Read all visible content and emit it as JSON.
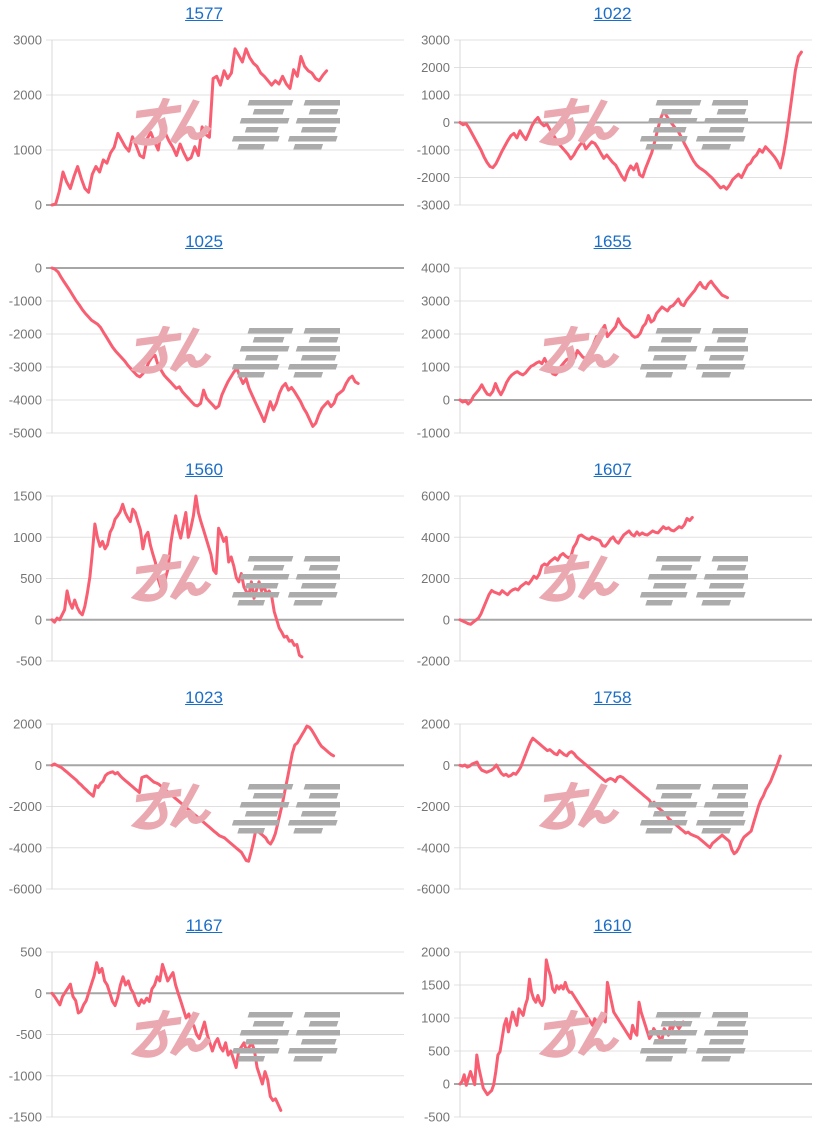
{
  "page": {
    "background": "#ffffff"
  },
  "watermark": {
    "text": "みんレポ",
    "pink_color": "#eaa9b0",
    "gray_color": "#ababab"
  },
  "colors": {
    "series_line": "#f85f72",
    "gridline": "#e0e0e0",
    "baseline": "#a6a6a6",
    "axis_line": "#d9d9d9",
    "tick_label": "#757575",
    "title_link": "#1b6ec8"
  },
  "chart_data": [
    {
      "title": "1577",
      "type": "line",
      "ylim": [
        0,
        3000
      ],
      "y_ticks": [
        3000,
        2000,
        1000,
        0
      ],
      "x_end": 0.78,
      "grid": true,
      "legend": "none",
      "values": [
        0,
        20,
        250,
        600,
        420,
        300,
        520,
        700,
        480,
        300,
        230,
        560,
        700,
        600,
        820,
        760,
        950,
        1050,
        1300,
        1180,
        1060,
        980,
        1240,
        1080,
        900,
        860,
        1210,
        1320,
        1150,
        1000,
        1410,
        1300,
        1160,
        1050,
        900,
        1110,
        950,
        820,
        860,
        1060,
        900,
        1420,
        1280,
        1230,
        2300,
        2340,
        2180,
        2440,
        2300,
        2400,
        2840,
        2720,
        2600,
        2840,
        2680,
        2580,
        2520,
        2400,
        2340,
        2260,
        2180,
        2260,
        2200,
        2340,
        2200,
        2120,
        2460,
        2340,
        2700,
        2520,
        2440,
        2400,
        2300,
        2260,
        2360,
        2440
      ]
    },
    {
      "title": "1022",
      "type": "line",
      "ylim": [
        -3000,
        3000
      ],
      "y_ticks": [
        3000,
        2000,
        1000,
        0,
        -1000,
        -2000,
        -3000
      ],
      "x_end": 0.97,
      "grid": true,
      "legend": "none",
      "values": [
        0,
        -80,
        -40,
        -200,
        -400,
        -600,
        -800,
        -1000,
        -1250,
        -1450,
        -1600,
        -1640,
        -1500,
        -1280,
        -1050,
        -850,
        -650,
        -480,
        -400,
        -560,
        -300,
        -480,
        -620,
        -380,
        -120,
        60,
        180,
        -20,
        -120,
        -60,
        -250,
        -420,
        -600,
        -780,
        -900,
        -1020,
        -1150,
        -1320,
        -1180,
        -980,
        -820,
        -700,
        -960,
        -830,
        -700,
        -760,
        -920,
        -1120,
        -1300,
        -1180,
        -1320,
        -1450,
        -1550,
        -1750,
        -1950,
        -2100,
        -1780,
        -1580,
        -1720,
        -1500,
        -1900,
        -1980,
        -1650,
        -1380,
        -1100,
        -700,
        -250,
        150,
        420,
        230,
        60,
        -80,
        -220,
        -350,
        -550,
        -780,
        -980,
        -1200,
        -1400,
        -1550,
        -1650,
        -1720,
        -1800,
        -1900,
        -2000,
        -2120,
        -2250,
        -2380,
        -2320,
        -2420,
        -2280,
        -2080,
        -1980,
        -1880,
        -2000,
        -1780,
        -1560,
        -1480,
        -1280,
        -1180,
        -980,
        -1080,
        -880,
        -1000,
        -1120,
        -1250,
        -1420,
        -1650,
        -1150,
        -500,
        300,
        1100,
        1900,
        2400,
        2560
      ]
    },
    {
      "title": "1025",
      "type": "line",
      "ylim": [
        -5000,
        0
      ],
      "y_ticks": [
        0,
        -1000,
        -2000,
        -3000,
        -4000,
        -5000
      ],
      "x_end": 0.87,
      "grid": true,
      "legend": "none",
      "values": [
        0,
        -40,
        -120,
        -280,
        -420,
        -560,
        -700,
        -850,
        -1000,
        -1120,
        -1260,
        -1380,
        -1480,
        -1580,
        -1640,
        -1700,
        -1800,
        -1950,
        -2100,
        -2250,
        -2400,
        -2520,
        -2620,
        -2720,
        -2820,
        -2950,
        -3050,
        -3150,
        -3250,
        -3300,
        -3200,
        -3050,
        -2850,
        -2700,
        -2650,
        -2950,
        -3100,
        -3250,
        -3350,
        -3450,
        -3550,
        -3650,
        -3600,
        -3750,
        -3850,
        -3950,
        -4050,
        -4150,
        -4180,
        -4100,
        -3700,
        -3950,
        -4050,
        -4150,
        -4250,
        -4180,
        -3850,
        -3650,
        -3450,
        -3300,
        -3150,
        -3050,
        -3300,
        -3500,
        -3350,
        -3650,
        -3850,
        -4050,
        -4250,
        -4450,
        -4650,
        -4350,
        -4050,
        -4300,
        -4100,
        -3800,
        -3600,
        -3500,
        -3700,
        -3620,
        -3750,
        -3900,
        -4050,
        -4250,
        -4400,
        -4600,
        -4800,
        -4700,
        -4450,
        -4250,
        -4150,
        -4050,
        -4200,
        -4100,
        -3850,
        -3780,
        -3700,
        -3500,
        -3350,
        -3280,
        -3450,
        -3500
      ]
    },
    {
      "title": "1655",
      "type": "line",
      "ylim": [
        -1000,
        4000
      ],
      "y_ticks": [
        4000,
        3000,
        2000,
        1000,
        0,
        -1000
      ],
      "x_end": 0.76,
      "grid": true,
      "legend": "none",
      "values": [
        0,
        -60,
        -20,
        -120,
        -40,
        120,
        220,
        320,
        460,
        300,
        180,
        150,
        260,
        500,
        300,
        160,
        320,
        520,
        660,
        760,
        820,
        860,
        800,
        760,
        820,
        920,
        1020,
        1060,
        1120,
        1160,
        1100,
        1260,
        1080,
        900,
        790,
        760,
        860,
        1020,
        1120,
        1220,
        1260,
        1320,
        1260,
        1500,
        1400,
        1300,
        1260,
        1220,
        1520,
        1720,
        1920,
        1820,
        2120,
        2260,
        1920,
        2020,
        2120,
        2220,
        2460,
        2300,
        2200,
        2140,
        2080,
        1960,
        1900,
        1920,
        2020,
        2220,
        2320,
        2560,
        2360,
        2420,
        2620,
        2720,
        2820,
        2760,
        2700,
        2820,
        2860,
        2960,
        3060,
        2900,
        2860,
        3020,
        3120,
        3220,
        3320,
        3460,
        3560,
        3420,
        3380,
        3520,
        3600,
        3480,
        3380,
        3280,
        3180,
        3140,
        3100
      ]
    },
    {
      "title": "1560",
      "type": "line",
      "ylim": [
        -500,
        1500
      ],
      "y_ticks": [
        1500,
        1000,
        500,
        0,
        -500
      ],
      "x_end": 0.71,
      "grid": true,
      "legend": "none",
      "values": [
        0,
        -30,
        20,
        0,
        60,
        120,
        350,
        210,
        140,
        240,
        150,
        90,
        60,
        160,
        320,
        520,
        820,
        1160,
        1000,
        890,
        950,
        860,
        910,
        1060,
        1120,
        1220,
        1260,
        1310,
        1400,
        1300,
        1240,
        1190,
        1340,
        1300,
        1190,
        1090,
        860,
        1010,
        1060,
        900,
        790,
        690,
        500,
        400,
        340,
        510,
        620,
        910,
        1110,
        1260,
        1100,
        990,
        1150,
        1300,
        1000,
        1110,
        1260,
        1500,
        1300,
        1190,
        1090,
        990,
        890,
        790,
        600,
        560,
        1110,
        1040,
        950,
        1000,
        700,
        760,
        650,
        510,
        460,
        560,
        400,
        340,
        300,
        460,
        260,
        360,
        460,
        350,
        410,
        300,
        350,
        290,
        100,
        0,
        -100,
        -150,
        -210,
        -200,
        -260,
        -250,
        -310,
        -300,
        -430,
        -450
      ]
    },
    {
      "title": "1607",
      "type": "line",
      "ylim": [
        -2000,
        6000
      ],
      "y_ticks": [
        6000,
        4000,
        2000,
        0,
        -2000
      ],
      "x_end": 0.66,
      "grid": true,
      "legend": "none",
      "values": [
        0,
        -60,
        -120,
        -180,
        -220,
        -120,
        -20,
        80,
        300,
        620,
        920,
        1220,
        1420,
        1340,
        1290,
        1240,
        1410,
        1300,
        1210,
        1360,
        1450,
        1500,
        1440,
        1610,
        1710,
        1810,
        1740,
        1910,
        2110,
        2010,
        2210,
        2610,
        2710,
        2640,
        2810,
        2910,
        3010,
        2890,
        3110,
        3210,
        3090,
        3010,
        3060,
        3510,
        3710,
        4060,
        4110,
        4010,
        3940,
        3890,
        4010,
        3950,
        3890,
        3840,
        3590,
        3560,
        3710,
        3910,
        4010,
        3810,
        3710,
        3910,
        4110,
        4210,
        4310,
        4140,
        4060,
        4260,
        4110,
        4210,
        4140,
        4110,
        4210,
        4310,
        4240,
        4210,
        4360,
        4510,
        4410,
        4460,
        4340,
        4310,
        4410,
        4510,
        4460,
        4610,
        4910,
        4810,
        4960
      ]
    },
    {
      "title": "1023",
      "type": "line",
      "ylim": [
        -6000,
        2000
      ],
      "y_ticks": [
        2000,
        0,
        -2000,
        -4000,
        -6000
      ],
      "x_end": 0.8,
      "grid": true,
      "legend": "none",
      "values": [
        0,
        60,
        0,
        -60,
        -120,
        -220,
        -320,
        -420,
        -520,
        -620,
        -720,
        -850,
        -950,
        -1080,
        -1180,
        -1300,
        -1400,
        -1500,
        -980,
        -1080,
        -880,
        -780,
        -500,
        -400,
        -350,
        -320,
        -420,
        -350,
        -500,
        -620,
        -720,
        -820,
        -920,
        -1020,
        -1120,
        -1220,
        -1320,
        -600,
        -550,
        -520,
        -620,
        -720,
        -820,
        -860,
        -920,
        -1020,
        -1120,
        -1220,
        -1320,
        -1420,
        -1520,
        -1620,
        -1720,
        -1820,
        -1920,
        -2020,
        -2120,
        -2220,
        -2320,
        -2420,
        -2520,
        -2620,
        -2720,
        -2820,
        -2920,
        -3020,
        -3120,
        -3220,
        -3320,
        -3420,
        -3470,
        -3520,
        -3620,
        -3720,
        -3820,
        -3920,
        -4020,
        -4120,
        -4220,
        -4420,
        -4620,
        -4650,
        -4200,
        -3700,
        -3120,
        -3220,
        -3320,
        -3420,
        -3520,
        -3720,
        -3820,
        -3620,
        -3320,
        -2820,
        -2320,
        -1820,
        -1220,
        -620,
        -20,
        580,
        980,
        1080,
        1280,
        1480,
        1680,
        1900,
        1850,
        1700,
        1500,
        1300,
        1100,
        920,
        820,
        720,
        620,
        520,
        460
      ]
    },
    {
      "title": "1758",
      "type": "line",
      "ylim": [
        -6000,
        2000
      ],
      "y_ticks": [
        2000,
        0,
        -2000,
        -4000,
        -6000
      ],
      "x_end": 0.91,
      "grid": true,
      "legend": "none",
      "values": [
        0,
        -40,
        10,
        -90,
        -40,
        60,
        110,
        160,
        -90,
        -240,
        -290,
        -340,
        -290,
        -240,
        -140,
        10,
        -190,
        -390,
        -490,
        -440,
        -540,
        -490,
        -390,
        -440,
        -290,
        -90,
        210,
        510,
        810,
        1110,
        1310,
        1210,
        1110,
        1010,
        910,
        810,
        710,
        760,
        660,
        560,
        510,
        710,
        610,
        510,
        460,
        610,
        660,
        560,
        410,
        310,
        210,
        110,
        10,
        -90,
        -190,
        -290,
        -390,
        -490,
        -590,
        -690,
        -790,
        -690,
        -640,
        -690,
        -790,
        -590,
        -540,
        -590,
        -690,
        -790,
        -890,
        -990,
        -1090,
        -1190,
        -1290,
        -1390,
        -1490,
        -1590,
        -1690,
        -1890,
        -1790,
        -1990,
        -2090,
        -2190,
        -2290,
        -2390,
        -2590,
        -2690,
        -2790,
        -2890,
        -2990,
        -3090,
        -3190,
        -3290,
        -3240,
        -3340,
        -3390,
        -3440,
        -3490,
        -3590,
        -3690,
        -3790,
        -3890,
        -3990,
        -3790,
        -3690,
        -3590,
        -3490,
        -3390,
        -3490,
        -3590,
        -3690,
        -4090,
        -4290,
        -4190,
        -3990,
        -3690,
        -3490,
        -3390,
        -3290,
        -3190,
        -2790,
        -2390,
        -1990,
        -1690,
        -1490,
        -1190,
        -990,
        -790,
        -490,
        -190,
        110,
        450
      ]
    },
    {
      "title": "1167",
      "type": "line",
      "ylim": [
        -1500,
        500
      ],
      "y_ticks": [
        500,
        0,
        -500,
        -1000,
        -1500
      ],
      "x_end": 0.65,
      "grid": true,
      "legend": "none",
      "values": [
        0,
        -40,
        -90,
        -140,
        -40,
        10,
        60,
        110,
        -40,
        -90,
        -240,
        -220,
        -140,
        -90,
        10,
        110,
        210,
        370,
        250,
        300,
        150,
        100,
        0,
        -100,
        -150,
        -50,
        100,
        200,
        100,
        150,
        50,
        0,
        -100,
        -150,
        -80,
        -120,
        -60,
        -100,
        50,
        100,
        200,
        150,
        350,
        250,
        150,
        200,
        250,
        100,
        0,
        -100,
        -200,
        -300,
        -250,
        -350,
        -400,
        -500,
        -550,
        -450,
        -350,
        -500,
        -600,
        -700,
        -600,
        -550,
        -650,
        -700,
        -600,
        -750,
        -700,
        -800,
        -900,
        -700,
        -650,
        -600,
        -700,
        -650,
        -600,
        -700,
        -900,
        -1000,
        -1100,
        -950,
        -1050,
        -1250,
        -1300,
        -1280,
        -1350,
        -1420
      ]
    },
    {
      "title": "1610",
      "type": "line",
      "ylim": [
        -500,
        2000
      ],
      "y_ticks": [
        2000,
        1500,
        1000,
        500,
        0,
        -500
      ],
      "x_end": 0.64,
      "grid": true,
      "legend": "none",
      "values": [
        0,
        40,
        140,
        -20,
        90,
        190,
        90,
        -10,
        440,
        240,
        90,
        -60,
        -110,
        -160,
        -130,
        -100,
        -10,
        190,
        440,
        490,
        690,
        890,
        990,
        790,
        940,
        1090,
        990,
        890,
        1140,
        1090,
        1040,
        1190,
        1290,
        1590,
        1390,
        1290,
        1240,
        1340,
        1240,
        1190,
        1290,
        1880,
        1740,
        1640,
        1440,
        1390,
        1490,
        1440,
        1490,
        1440,
        1540,
        1440,
        1390,
        1390,
        1340,
        1290,
        1240,
        1190,
        1140,
        1090,
        1040,
        990,
        940,
        890,
        990,
        940,
        890,
        1040,
        990,
        940,
        1540,
        1390,
        1240,
        1090,
        1040,
        990,
        940,
        890,
        840,
        790,
        740,
        690,
        890,
        790,
        740,
        1240,
        1090,
        990,
        890,
        790,
        690,
        740,
        840,
        790,
        740,
        690,
        680,
        840,
        790,
        740,
        890,
        840,
        940,
        890,
        840,
        890,
        940,
        900
      ]
    }
  ]
}
